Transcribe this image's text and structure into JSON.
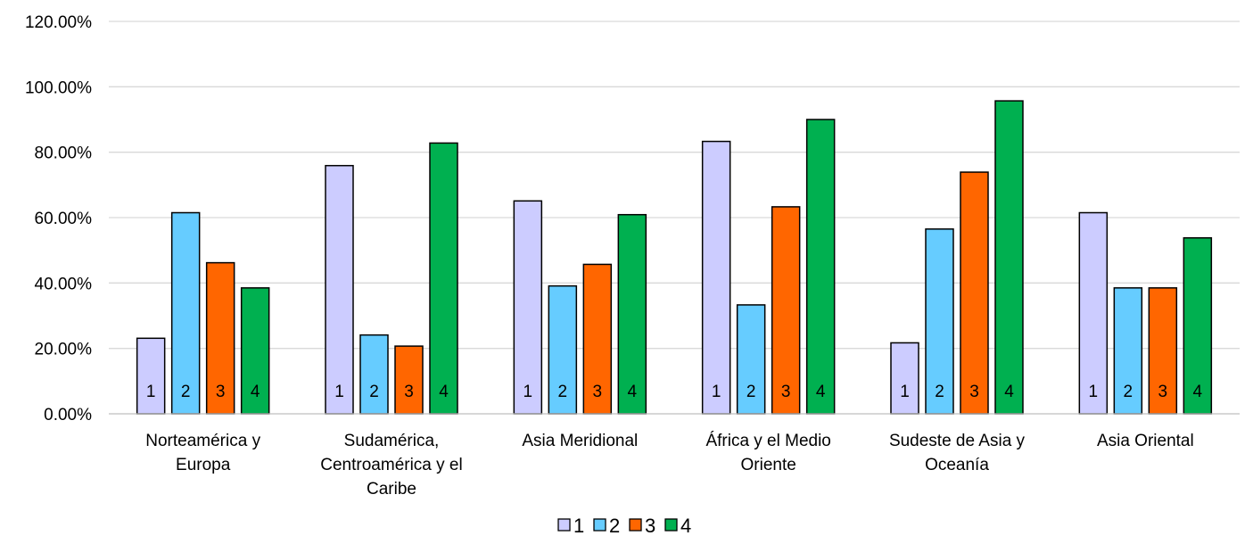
{
  "chart_data": {
    "type": "bar",
    "title": "",
    "xlabel": "",
    "ylabel": "",
    "ylim": [
      0,
      1.2
    ],
    "y_tick_values": [
      0,
      0.2,
      0.4,
      0.6,
      0.8,
      1.0,
      1.2
    ],
    "y_tick_labels": [
      "0.00%",
      "20.00%",
      "40.00%",
      "60.00%",
      "80.00%",
      "100.00%",
      "120.00%"
    ],
    "grid": true,
    "legend_position": "bottom",
    "categories": [
      [
        "Norteamérica y",
        "Europa"
      ],
      [
        "Sudamérica,",
        "Centroamérica y el",
        "Caribe"
      ],
      [
        "Asia Meridional"
      ],
      [
        "África y el Medio",
        "Oriente"
      ],
      [
        "Sudeste de Asia y",
        "Oceanía"
      ],
      [
        "Asia Oriental"
      ]
    ],
    "series": [
      {
        "name": "1",
        "color": "#ccccff",
        "values": [
          0.231,
          0.759,
          0.651,
          0.833,
          0.217,
          0.615
        ]
      },
      {
        "name": "2",
        "color": "#66ccff",
        "values": [
          0.615,
          0.241,
          0.391,
          0.333,
          0.565,
          0.385
        ]
      },
      {
        "name": "3",
        "color": "#ff6600",
        "values": [
          0.462,
          0.207,
          0.457,
          0.633,
          0.739,
          0.385
        ]
      },
      {
        "name": "4",
        "color": "#00b050",
        "values": [
          0.385,
          0.828,
          0.609,
          0.9,
          0.957,
          0.538
        ]
      }
    ]
  }
}
